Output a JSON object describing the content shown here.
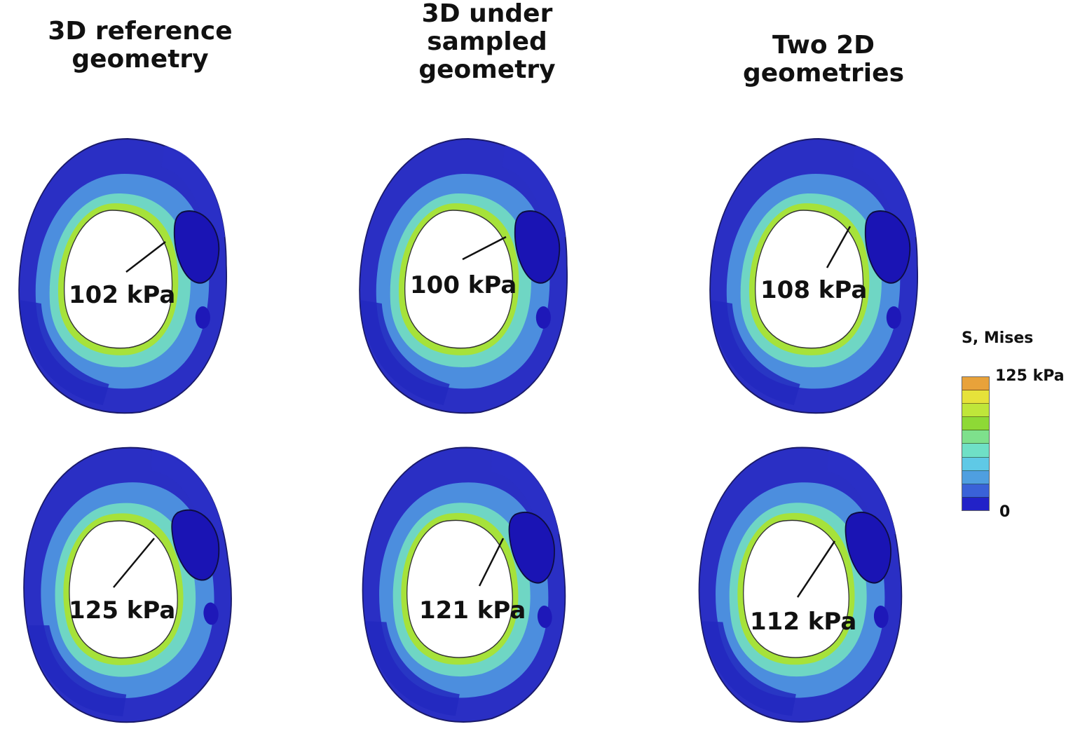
{
  "columns": [
    {
      "title": "3D reference\ngeometry"
    },
    {
      "title": "3D under\nsampled\ngeometry"
    },
    {
      "title": "Two 2D\ngeometries"
    }
  ],
  "panels": [
    {
      "label": "102 kPa"
    },
    {
      "label": "100 kPa"
    },
    {
      "label": "108 kPa"
    },
    {
      "label": "125 kPa"
    },
    {
      "label": "121 kPa"
    },
    {
      "label": "112 kPa"
    }
  ],
  "legend": {
    "title": "S, Mises",
    "max_label": "125 kPa",
    "min_label": "0",
    "colors": [
      "#e8a23a",
      "#e6e23a",
      "#bfe63a",
      "#8ed936",
      "#7ee08c",
      "#6fe0c6",
      "#5fc9e6",
      "#4f9fe0",
      "#3a62d8",
      "#2222c8"
    ]
  }
}
